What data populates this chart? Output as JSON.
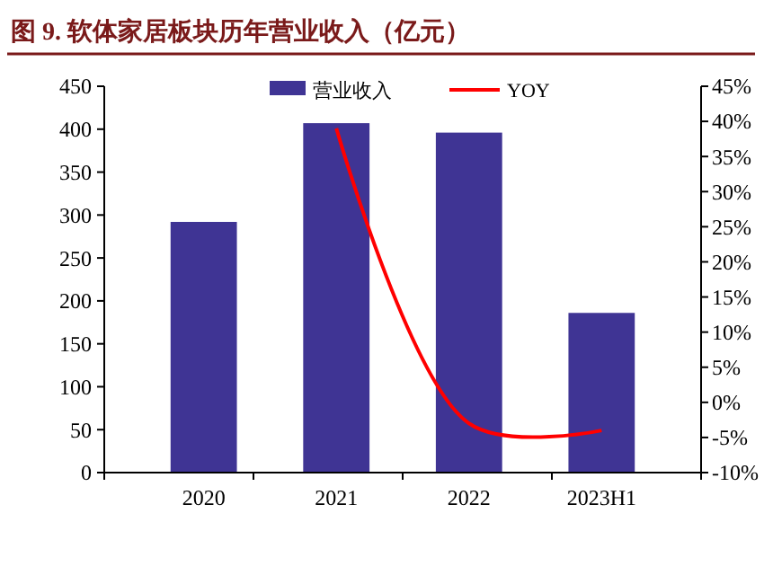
{
  "chart_data": {
    "type": "bar",
    "title": "图 9. 软体家居板块历年营业收入（亿元）",
    "categories": [
      "2020",
      "2021",
      "2022",
      "2023H1"
    ],
    "series": [
      {
        "name": "营业收入",
        "color": "#3f3494",
        "values": [
          292,
          407,
          396,
          186
        ]
      },
      {
        "name": "YOY",
        "type": "line",
        "axis": "y2",
        "color": "#ff0000",
        "values": [
          null,
          39,
          -3,
          -4
        ]
      }
    ],
    "ylim": [
      0,
      450
    ],
    "yticks": [
      0,
      50,
      100,
      150,
      200,
      250,
      300,
      350,
      400,
      450
    ],
    "y2lim": [
      -10,
      45
    ],
    "y2ticks": [
      {
        "value": -10,
        "label": "-10%"
      },
      {
        "value": -5,
        "label": "-5%"
      },
      {
        "value": 0,
        "label": "0%"
      },
      {
        "value": 5,
        "label": "5%"
      },
      {
        "value": 10,
        "label": "10%"
      },
      {
        "value": 15,
        "label": "15%"
      },
      {
        "value": 20,
        "label": "20%"
      },
      {
        "value": 25,
        "label": "25%"
      },
      {
        "value": 30,
        "label": "30%"
      },
      {
        "value": 35,
        "label": "35%"
      },
      {
        "value": 40,
        "label": "40%"
      },
      {
        "value": 45,
        "label": "45%"
      }
    ],
    "legend": "top",
    "grid": false,
    "marker": "none"
  }
}
